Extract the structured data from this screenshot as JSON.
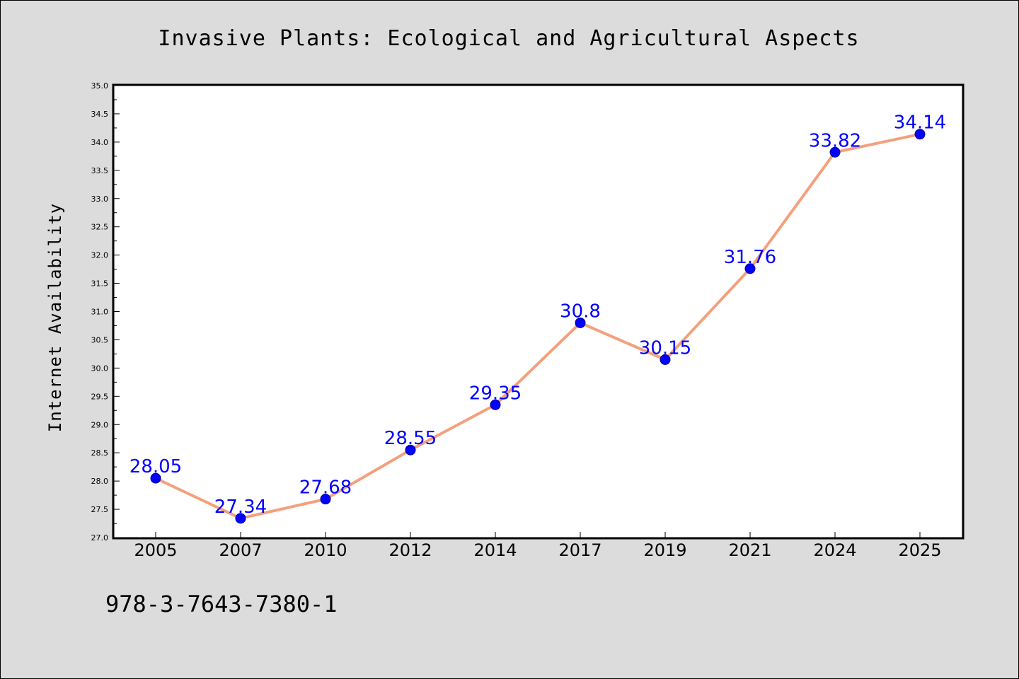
{
  "chart_data": {
    "type": "line",
    "title": "Invasive Plants: Ecological and Agricultural Aspects",
    "xlabel": "",
    "ylabel": "Internet Availability",
    "categories": [
      "2005",
      "2007",
      "2010",
      "2012",
      "2014",
      "2017",
      "2019",
      "2021",
      "2024",
      "2025"
    ],
    "series": [
      {
        "values": [
          28.05,
          27.34,
          27.68,
          28.55,
          29.35,
          30.8,
          30.15,
          31.76,
          33.82,
          34.14
        ],
        "data_labels": [
          "28.05",
          "27.34",
          "27.68",
          "28.55",
          "29.35",
          "30.8",
          "30.15",
          "31.76",
          "33.82",
          "34.14"
        ]
      }
    ],
    "ylim": [
      27.0,
      35.0
    ],
    "yticks": [
      27.0,
      27.5,
      28.0,
      28.5,
      29.0,
      29.5,
      30.0,
      30.5,
      31.0,
      31.5,
      32.0,
      32.5,
      33.0,
      33.5,
      34.0,
      34.5,
      35.0
    ],
    "ytick_labels": [
      "27.0",
      "27.5",
      "28.0",
      "28.5",
      "29.0",
      "29.5",
      "30.0",
      "30.5",
      "31.0",
      "31.5",
      "32.0",
      "32.5",
      "33.0",
      "33.5",
      "34.0",
      "34.5",
      "35.0"
    ],
    "grid": false,
    "legend": "none",
    "colors": {
      "line": "#f4a07c",
      "marker": "#0000ff",
      "marker_edge": "#00008b",
      "label": "#0000ff",
      "background": "#dcdcdc",
      "plot_background": "#ffffff"
    }
  },
  "footer": {
    "isbn": "978-3-7643-7380-1"
  }
}
